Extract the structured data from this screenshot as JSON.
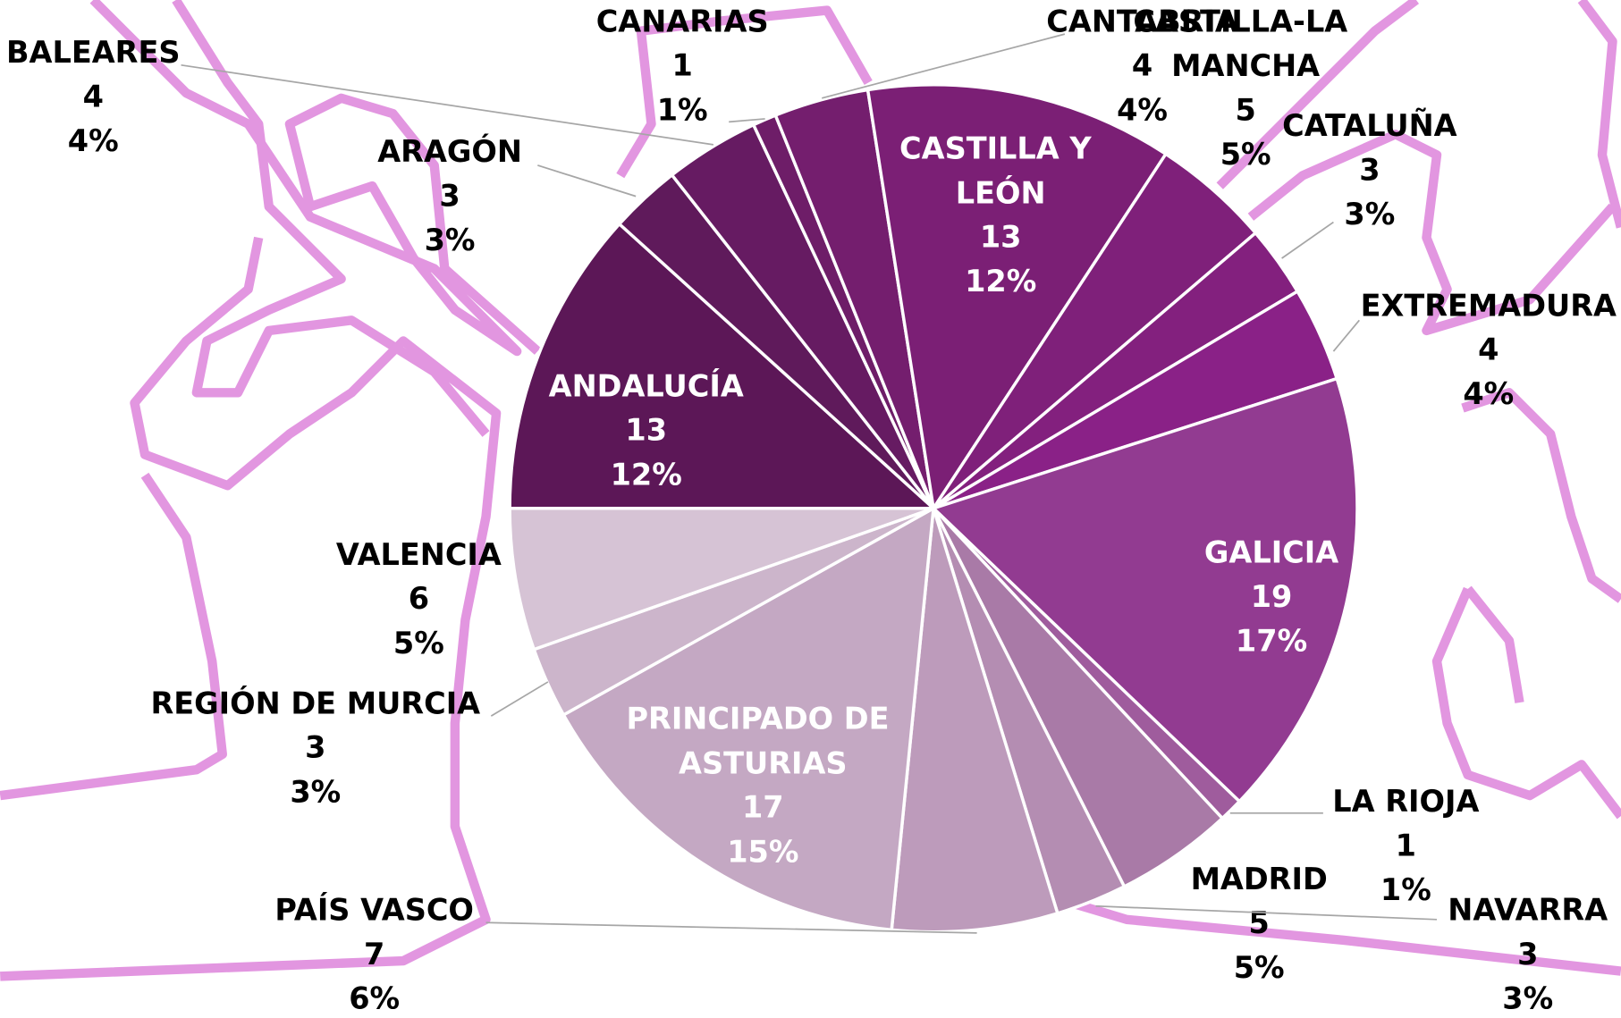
{
  "chart_data": {
    "type": "pie",
    "categories": [
      "ANDALUCÍA",
      "ARAGÓN",
      "BALEARES",
      "CANARIAS",
      "CANTABRIA",
      "CASTILLA Y LEÓN",
      "CASTILLA-LA MANCHA",
      "CATALUÑA",
      "EXTREMADURA",
      "GALICIA",
      "LA RIOJA",
      "MADRID",
      "NAVARRA",
      "PAÍS VASCO",
      "PRINCIPADO DE ASTURIAS",
      "REGIÓN DE MURCIA",
      "VALENCIA"
    ],
    "values": [
      13,
      3,
      4,
      1,
      4,
      13,
      5,
      3,
      4,
      19,
      1,
      5,
      3,
      7,
      17,
      3,
      6
    ],
    "percent_labels": [
      "12%",
      "3%",
      "4%",
      "1%",
      "4%",
      "12%",
      "5%",
      "3%",
      "4%",
      "17%",
      "1%",
      "5%",
      "3%",
      "6%",
      "15%",
      "3%",
      "5%"
    ],
    "colors": [
      "#5c1757",
      "#5f1a5b",
      "#661b62",
      "#6e1d68",
      "#741e6e",
      "#7b1f75",
      "#7f207a",
      "#83207e",
      "#8a2187",
      "#923b91",
      "#9f5c9d",
      "#a97aa7",
      "#b48db2",
      "#bd9bbb",
      "#c4a8c3",
      "#ccb5cb",
      "#d6c3d5"
    ]
  }
}
